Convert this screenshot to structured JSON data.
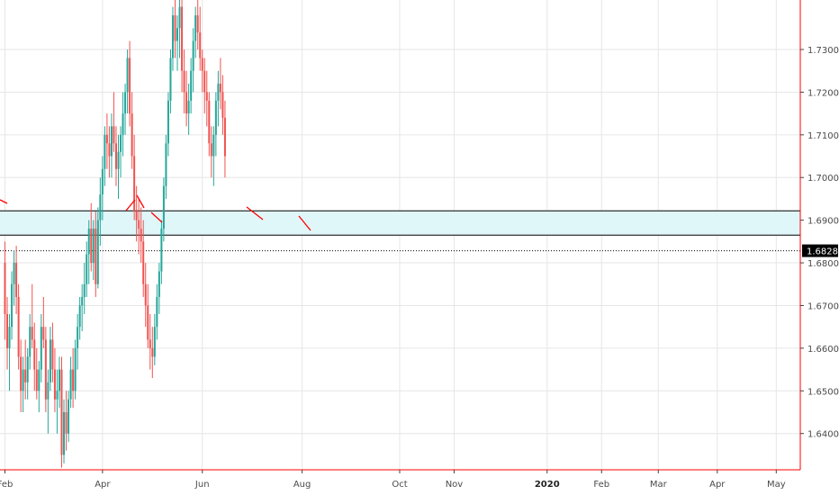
{
  "chart_data": {
    "type": "candlestick",
    "title": "",
    "xlabel": "",
    "ylabel": "",
    "ylim": [
      1.6315,
      1.7416
    ],
    "y_ticks": [
      "1.64000",
      "1.65000",
      "1.66000",
      "1.67000",
      "1.68000",
      "1.69000",
      "1.70000",
      "1.71000",
      "1.72000",
      "1.73000"
    ],
    "x_ticks": [
      {
        "label": "Feb",
        "bar": 0,
        "bold": false
      },
      {
        "label": "Apr",
        "bar": 43,
        "bold": false
      },
      {
        "label": "Jun",
        "bar": 87,
        "bold": false
      },
      {
        "label": "Aug",
        "bar": 131,
        "bold": false
      },
      {
        "label": "Oct",
        "bar": 174,
        "bold": false
      },
      {
        "label": "Nov",
        "bar": 198,
        "bold": false
      },
      {
        "label": "2020",
        "bar": 239,
        "bold": true
      },
      {
        "label": "Feb",
        "bar": 263,
        "bold": false
      },
      {
        "label": "Mar",
        "bar": 288,
        "bold": false
      },
      {
        "label": "Apr",
        "bar": 314,
        "bold": false
      },
      {
        "label": "May",
        "bar": 340,
        "bold": false
      }
    ],
    "current_price": {
      "value": 1.68284,
      "label": "1.68284"
    },
    "zone": {
      "top": 1.6922,
      "bottom": 1.6865
    },
    "colors": {
      "up": "#26a69a",
      "down": "#ef5350",
      "zone_fill": "#e0f7fa",
      "line": "#000000",
      "annotation": "#ff0000",
      "grid": "#e6e6e6",
      "price_tag": "#000000"
    },
    "ohlc_daily": [
      [
        1.68,
        1.685,
        1.662,
        1.668
      ],
      [
        1.668,
        1.672,
        1.655,
        1.66
      ],
      [
        1.66,
        1.668,
        1.65,
        1.665
      ],
      [
        1.665,
        1.678,
        1.662,
        1.675
      ],
      [
        1.675,
        1.683,
        1.67,
        1.68
      ],
      [
        1.68,
        1.684,
        1.668,
        1.672
      ],
      [
        1.672,
        1.675,
        1.655,
        1.658
      ],
      [
        1.658,
        1.662,
        1.645,
        1.65
      ],
      [
        1.65,
        1.658,
        1.645,
        1.655
      ],
      [
        1.655,
        1.662,
        1.648,
        1.652
      ],
      [
        1.652,
        1.66,
        1.648,
        1.658
      ],
      [
        1.658,
        1.668,
        1.655,
        1.665
      ],
      [
        1.665,
        1.675,
        1.66,
        1.662
      ],
      [
        1.662,
        1.666,
        1.65,
        1.655
      ],
      [
        1.655,
        1.66,
        1.648,
        1.65
      ],
      [
        1.65,
        1.657,
        1.645,
        1.655
      ],
      [
        1.655,
        1.668,
        1.652,
        1.665
      ],
      [
        1.665,
        1.672,
        1.66,
        1.662
      ],
      [
        1.662,
        1.665,
        1.645,
        1.648
      ],
      [
        1.648,
        1.655,
        1.64,
        1.652
      ],
      [
        1.652,
        1.665,
        1.65,
        1.662
      ],
      [
        1.662,
        1.666,
        1.652,
        1.655
      ],
      [
        1.655,
        1.66,
        1.645,
        1.648
      ],
      [
        1.648,
        1.655,
        1.64,
        1.65
      ],
      [
        1.65,
        1.658,
        1.646,
        1.655
      ],
      [
        1.655,
        1.658,
        1.632,
        1.635
      ],
      [
        1.635,
        1.648,
        1.633,
        1.645
      ],
      [
        1.645,
        1.65,
        1.636,
        1.64
      ],
      [
        1.64,
        1.65,
        1.638,
        1.648
      ],
      [
        1.648,
        1.658,
        1.646,
        1.655
      ],
      [
        1.655,
        1.66,
        1.646,
        1.65
      ],
      [
        1.65,
        1.662,
        1.648,
        1.66
      ],
      [
        1.66,
        1.668,
        1.655,
        1.665
      ],
      [
        1.665,
        1.672,
        1.662,
        1.67
      ],
      [
        1.67,
        1.675,
        1.664,
        1.672
      ],
      [
        1.672,
        1.68,
        1.668,
        1.675
      ],
      [
        1.675,
        1.685,
        1.672,
        1.682
      ],
      [
        1.682,
        1.69,
        1.675,
        1.688
      ],
      [
        1.688,
        1.694,
        1.678,
        1.68
      ],
      [
        1.68,
        1.69,
        1.676,
        1.688
      ],
      [
        1.688,
        1.692,
        1.672,
        1.675
      ],
      [
        1.675,
        1.693,
        1.674,
        1.69
      ],
      [
        1.69,
        1.7,
        1.684,
        1.696
      ],
      [
        1.696,
        1.705,
        1.69,
        1.702
      ],
      [
        1.702,
        1.712,
        1.698,
        1.71
      ],
      [
        1.71,
        1.715,
        1.702,
        1.708
      ],
      [
        1.708,
        1.712,
        1.7,
        1.705
      ],
      [
        1.705,
        1.715,
        1.7,
        1.712
      ],
      [
        1.712,
        1.72,
        1.706,
        1.708
      ],
      [
        1.708,
        1.712,
        1.698,
        1.702
      ],
      [
        1.702,
        1.71,
        1.695,
        1.706
      ],
      [
        1.706,
        1.712,
        1.7,
        1.71
      ],
      [
        1.71,
        1.72,
        1.705,
        1.715
      ],
      [
        1.715,
        1.722,
        1.71,
        1.72
      ],
      [
        1.72,
        1.73,
        1.715,
        1.728
      ],
      [
        1.728,
        1.732,
        1.712,
        1.715
      ],
      [
        1.715,
        1.72,
        1.702,
        1.705
      ],
      [
        1.705,
        1.71,
        1.69,
        1.692
      ],
      [
        1.692,
        1.698,
        1.685,
        1.69
      ],
      [
        1.69,
        1.695,
        1.682,
        1.688
      ],
      [
        1.688,
        1.693,
        1.68,
        1.685
      ],
      [
        1.685,
        1.69,
        1.672,
        1.675
      ],
      [
        1.675,
        1.68,
        1.665,
        1.67
      ],
      [
        1.67,
        1.675,
        1.66,
        1.662
      ],
      [
        1.662,
        1.668,
        1.655,
        1.66
      ],
      [
        1.66,
        1.665,
        1.653,
        1.658
      ],
      [
        1.658,
        1.668,
        1.656,
        1.665
      ],
      [
        1.665,
        1.675,
        1.662,
        1.672
      ],
      [
        1.672,
        1.68,
        1.668,
        1.678
      ],
      [
        1.678,
        1.69,
        1.675,
        1.688
      ],
      [
        1.688,
        1.7,
        1.685,
        1.698
      ],
      [
        1.698,
        1.71,
        1.695,
        1.708
      ],
      [
        1.708,
        1.72,
        1.705,
        1.718
      ],
      [
        1.718,
        1.73,
        1.715,
        1.728
      ],
      [
        1.728,
        1.74,
        1.725,
        1.738
      ],
      [
        1.738,
        1.742,
        1.728,
        1.732
      ],
      [
        1.732,
        1.738,
        1.725,
        1.735
      ],
      [
        1.735,
        1.742,
        1.728,
        1.74
      ],
      [
        1.74,
        1.742,
        1.72,
        1.725
      ],
      [
        1.725,
        1.73,
        1.715,
        1.72
      ],
      [
        1.72,
        1.725,
        1.712,
        1.715
      ],
      [
        1.715,
        1.722,
        1.71,
        1.718
      ],
      [
        1.718,
        1.728,
        1.715,
        1.725
      ],
      [
        1.725,
        1.735,
        1.72,
        1.732
      ],
      [
        1.732,
        1.74,
        1.728,
        1.738
      ],
      [
        1.738,
        1.742,
        1.73,
        1.734
      ],
      [
        1.734,
        1.74,
        1.725,
        1.728
      ],
      [
        1.728,
        1.73,
        1.72,
        1.725
      ],
      [
        1.725,
        1.728,
        1.715,
        1.72
      ],
      [
        1.72,
        1.725,
        1.712,
        1.718
      ],
      [
        1.718,
        1.72,
        1.705,
        1.708
      ],
      [
        1.708,
        1.712,
        1.7,
        1.705
      ],
      [
        1.705,
        1.712,
        1.698,
        1.71
      ],
      [
        1.71,
        1.72,
        1.705,
        1.718
      ],
      [
        1.718,
        1.725,
        1.712,
        1.722
      ],
      [
        1.722,
        1.728,
        1.716,
        1.72
      ],
      [
        1.72,
        1.724,
        1.71,
        1.714
      ],
      [
        1.714,
        1.718,
        1.7,
        1.705
      ]
    ]
  }
}
